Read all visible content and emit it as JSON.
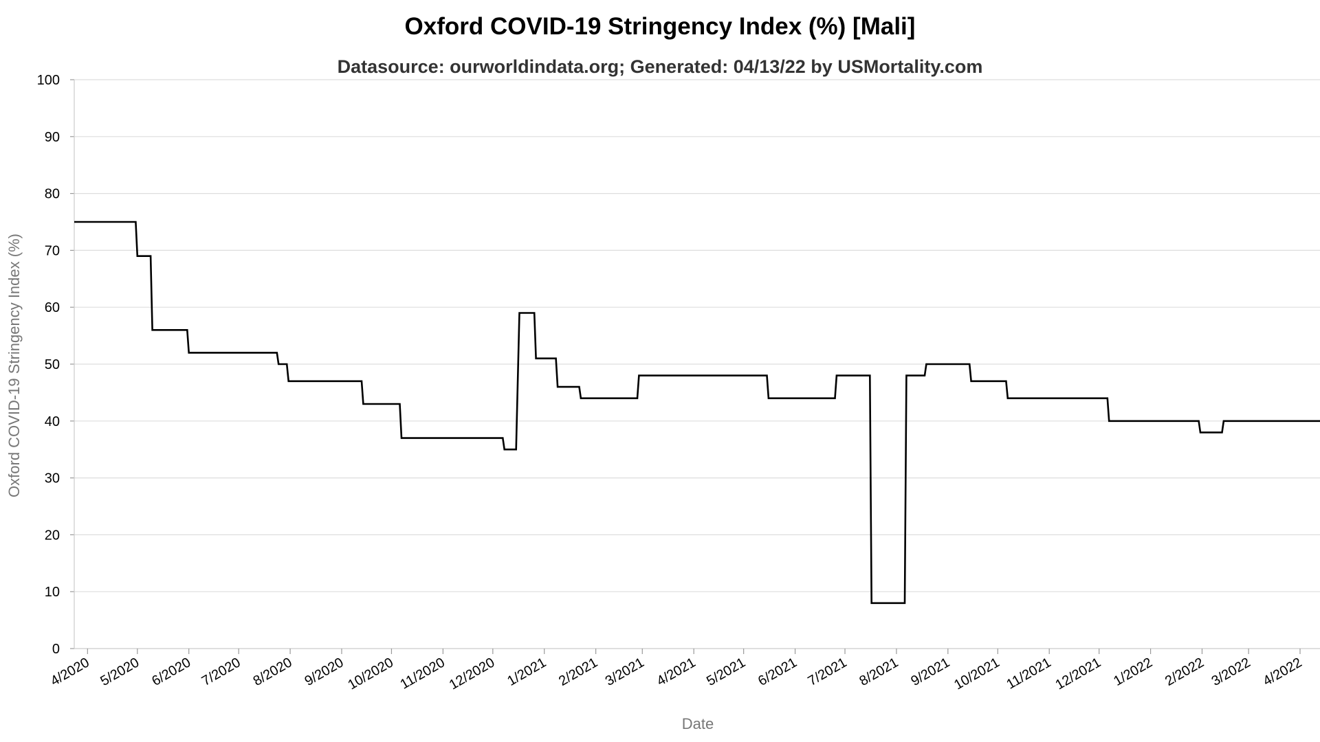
{
  "chart_data": {
    "type": "line",
    "title": "Oxford COVID-19 Stringency Index (%) [Mali]",
    "subtitle": "Datasource: ourworldindata.org; Generated: 04/13/22 by USMortality.com",
    "xlabel": "Date",
    "ylabel": "Oxford COVID-19 Stringency Index (%)",
    "ylim": [
      0,
      100
    ],
    "yticks": [
      0,
      10,
      20,
      30,
      40,
      50,
      60,
      70,
      80,
      90,
      100
    ],
    "xlim": [
      "2020-03-24",
      "2022-04-13"
    ],
    "xticks": [
      {
        "date": "2020-04-01",
        "label": "4/2020"
      },
      {
        "date": "2020-05-01",
        "label": "5/2020"
      },
      {
        "date": "2020-06-01",
        "label": "6/2020"
      },
      {
        "date": "2020-07-01",
        "label": "7/2020"
      },
      {
        "date": "2020-08-01",
        "label": "8/2020"
      },
      {
        "date": "2020-09-01",
        "label": "9/2020"
      },
      {
        "date": "2020-10-01",
        "label": "10/2020"
      },
      {
        "date": "2020-11-01",
        "label": "11/2020"
      },
      {
        "date": "2020-12-01",
        "label": "12/2020"
      },
      {
        "date": "2021-01-01",
        "label": "1/2021"
      },
      {
        "date": "2021-02-01",
        "label": "2/2021"
      },
      {
        "date": "2021-03-01",
        "label": "3/2021"
      },
      {
        "date": "2021-04-01",
        "label": "4/2021"
      },
      {
        "date": "2021-05-01",
        "label": "5/2021"
      },
      {
        "date": "2021-06-01",
        "label": "6/2021"
      },
      {
        "date": "2021-07-01",
        "label": "7/2021"
      },
      {
        "date": "2021-08-01",
        "label": "8/2021"
      },
      {
        "date": "2021-09-01",
        "label": "9/2021"
      },
      {
        "date": "2021-10-01",
        "label": "10/2021"
      },
      {
        "date": "2021-11-01",
        "label": "11/2021"
      },
      {
        "date": "2021-12-01",
        "label": "12/2021"
      },
      {
        "date": "2022-01-01",
        "label": "1/2022"
      },
      {
        "date": "2022-02-01",
        "label": "2/2022"
      },
      {
        "date": "2022-03-01",
        "label": "3/2022"
      },
      {
        "date": "2022-04-01",
        "label": "4/2022"
      }
    ],
    "grid": true,
    "series": [
      {
        "color": "#000000",
        "points": [
          {
            "date": "2020-03-24",
            "value": 75
          },
          {
            "date": "2020-04-30",
            "value": 75
          },
          {
            "date": "2020-05-01",
            "value": 69
          },
          {
            "date": "2020-05-09",
            "value": 69
          },
          {
            "date": "2020-05-10",
            "value": 56
          },
          {
            "date": "2020-05-31",
            "value": 56
          },
          {
            "date": "2020-06-01",
            "value": 52
          },
          {
            "date": "2020-07-24",
            "value": 52
          },
          {
            "date": "2020-07-25",
            "value": 50
          },
          {
            "date": "2020-07-30",
            "value": 50
          },
          {
            "date": "2020-07-31",
            "value": 47
          },
          {
            "date": "2020-09-13",
            "value": 47
          },
          {
            "date": "2020-09-14",
            "value": 43
          },
          {
            "date": "2020-10-06",
            "value": 43
          },
          {
            "date": "2020-10-07",
            "value": 37
          },
          {
            "date": "2020-12-07",
            "value": 37
          },
          {
            "date": "2020-12-08",
            "value": 35
          },
          {
            "date": "2020-12-15",
            "value": 35
          },
          {
            "date": "2020-12-17",
            "value": 59
          },
          {
            "date": "2020-12-26",
            "value": 59
          },
          {
            "date": "2020-12-27",
            "value": 51
          },
          {
            "date": "2021-01-08",
            "value": 51
          },
          {
            "date": "2021-01-09",
            "value": 46
          },
          {
            "date": "2021-01-22",
            "value": 46
          },
          {
            "date": "2021-01-23",
            "value": 44
          },
          {
            "date": "2021-02-26",
            "value": 44
          },
          {
            "date": "2021-02-27",
            "value": 48
          },
          {
            "date": "2021-05-15",
            "value": 48
          },
          {
            "date": "2021-05-16",
            "value": 44
          },
          {
            "date": "2021-06-25",
            "value": 44
          },
          {
            "date": "2021-06-26",
            "value": 48
          },
          {
            "date": "2021-07-16",
            "value": 48
          },
          {
            "date": "2021-07-17",
            "value": 8
          },
          {
            "date": "2021-08-06",
            "value": 8
          },
          {
            "date": "2021-08-07",
            "value": 48
          },
          {
            "date": "2021-08-18",
            "value": 48
          },
          {
            "date": "2021-08-19",
            "value": 50
          },
          {
            "date": "2021-09-14",
            "value": 50
          },
          {
            "date": "2021-09-15",
            "value": 47
          },
          {
            "date": "2021-10-06",
            "value": 47
          },
          {
            "date": "2021-10-07",
            "value": 44
          },
          {
            "date": "2021-12-06",
            "value": 44
          },
          {
            "date": "2021-12-07",
            "value": 40
          },
          {
            "date": "2022-01-30",
            "value": 40
          },
          {
            "date": "2022-01-31",
            "value": 38
          },
          {
            "date": "2022-02-13",
            "value": 38
          },
          {
            "date": "2022-02-14",
            "value": 40
          },
          {
            "date": "2022-04-13",
            "value": 40
          }
        ]
      }
    ]
  }
}
